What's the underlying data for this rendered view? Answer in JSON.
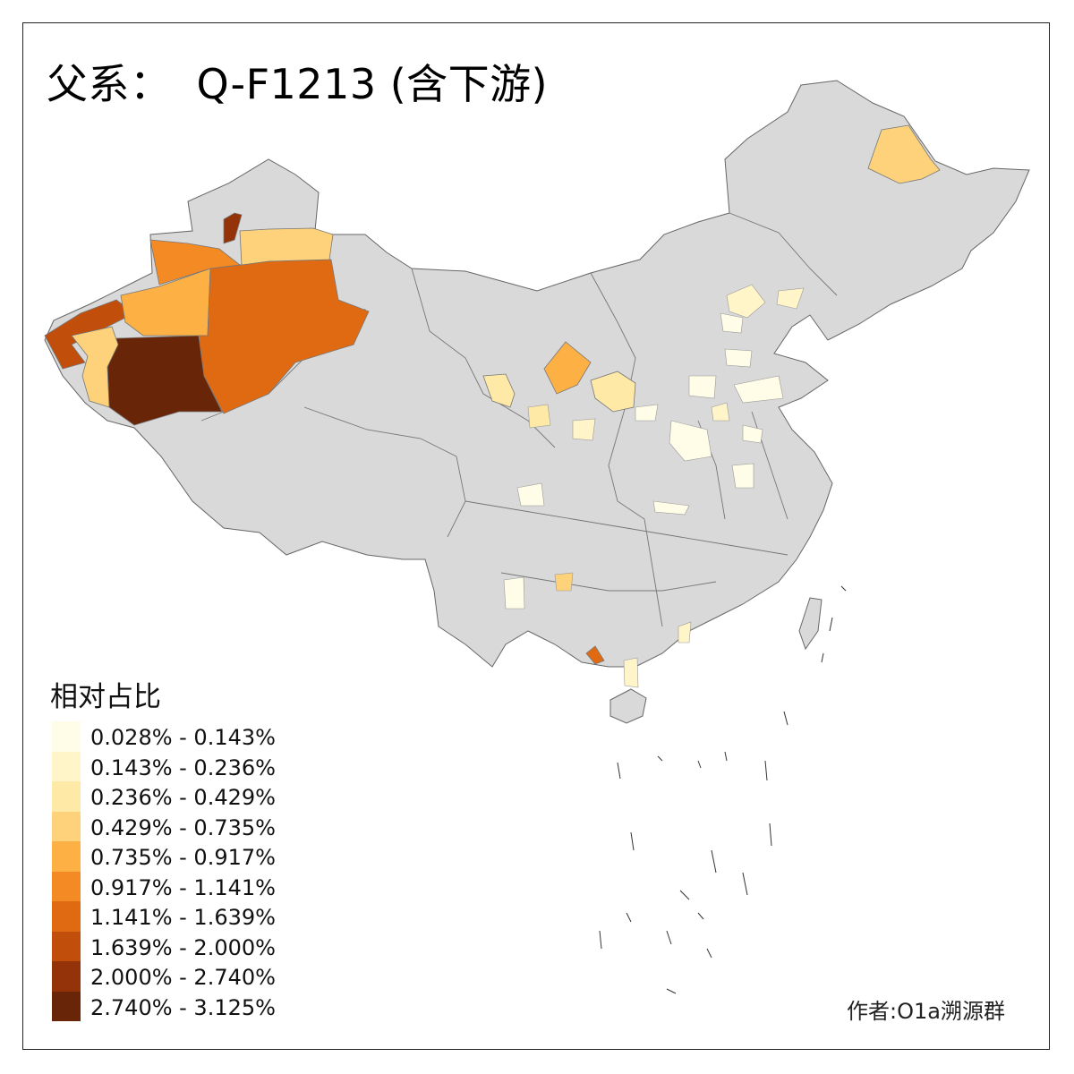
{
  "title": {
    "prefix": "父系：",
    "haplogroup": "Q-F1213 (含下游)"
  },
  "legend": {
    "title": "相对占比",
    "classes": [
      {
        "label": "0.028% - 0.143%",
        "color": "#fffde8"
      },
      {
        "label": "0.143% - 0.236%",
        "color": "#fff5c8"
      },
      {
        "label": "0.236% - 0.429%",
        "color": "#fee9a6"
      },
      {
        "label": "0.429% - 0.735%",
        "color": "#fed27a"
      },
      {
        "label": "0.735% - 0.917%",
        "color": "#fdb144"
      },
      {
        "label": "0.917% - 1.141%",
        "color": "#f48a24"
      },
      {
        "label": "1.141% - 1.639%",
        "color": "#e06a12"
      },
      {
        "label": "1.639% - 2.000%",
        "color": "#c24e0b"
      },
      {
        "label": "2.000% - 2.740%",
        "color": "#94320a"
      },
      {
        "label": "2.740% - 3.125%",
        "color": "#692508"
      }
    ]
  },
  "credit": "作者:O1a溯源群",
  "colors": {
    "no_data": "#d9d9d9",
    "border": "#555555"
  },
  "regions": [
    {
      "area": "Kashgar-Kizilsu",
      "class": 7
    },
    {
      "area": "Hotan",
      "class": 9
    },
    {
      "area": "Aksu",
      "class": 4
    },
    {
      "area": "Bayingolin",
      "class": 6
    },
    {
      "area": "Kashgar-south",
      "class": 3
    },
    {
      "area": "Ili",
      "class": 5
    },
    {
      "area": "Tacheng",
      "class": 8
    },
    {
      "area": "Urumqi-Changji",
      "class": 3
    },
    {
      "area": "Heilongjiang-north",
      "class": 3
    },
    {
      "area": "Gansu-Lanzhou",
      "class": 2
    },
    {
      "area": "Ningxia",
      "class": 4
    },
    {
      "area": "Ordos-Shaanxi",
      "class": 2
    },
    {
      "area": "Yunnan-south",
      "class": 6
    }
  ]
}
